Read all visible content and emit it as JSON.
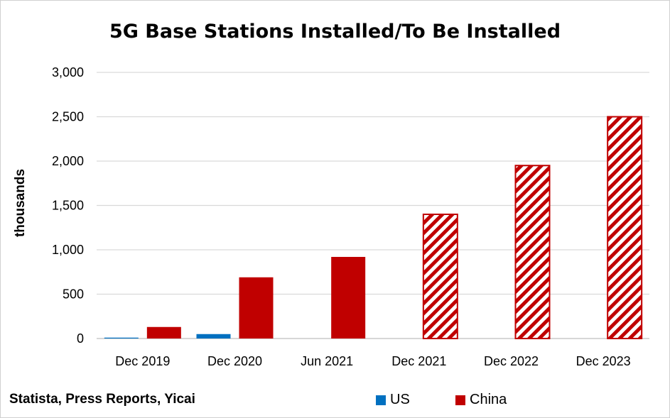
{
  "chart_data": {
    "type": "bar",
    "title": "5G Base Stations Installed/To Be Installed",
    "xlabel": "",
    "ylabel": "thousands",
    "ylim": [
      0,
      3000
    ],
    "yticks": [
      0,
      500,
      1000,
      1500,
      2000,
      2500,
      3000
    ],
    "ytick_labels": [
      "0",
      "500",
      "1,000",
      "1,500",
      "2,000",
      "2,500",
      "3,000"
    ],
    "categories": [
      "Dec 2019",
      "Dec 2020",
      "Jun 2021",
      "Dec 2021",
      "Dec 2022",
      "Dec 2023"
    ],
    "series": [
      {
        "name": "US",
        "color": "#0070c0",
        "values": [
          10,
          50,
          null,
          null,
          null,
          null
        ]
      },
      {
        "name": "China",
        "color": "#c00000",
        "values": [
          130,
          690,
          920,
          1400,
          1950,
          2500
        ],
        "projected": [
          false,
          false,
          false,
          true,
          true,
          true
        ]
      }
    ],
    "grid": true,
    "legend_position": "bottom"
  },
  "source": "Statista,  Press Reports, Yicai"
}
